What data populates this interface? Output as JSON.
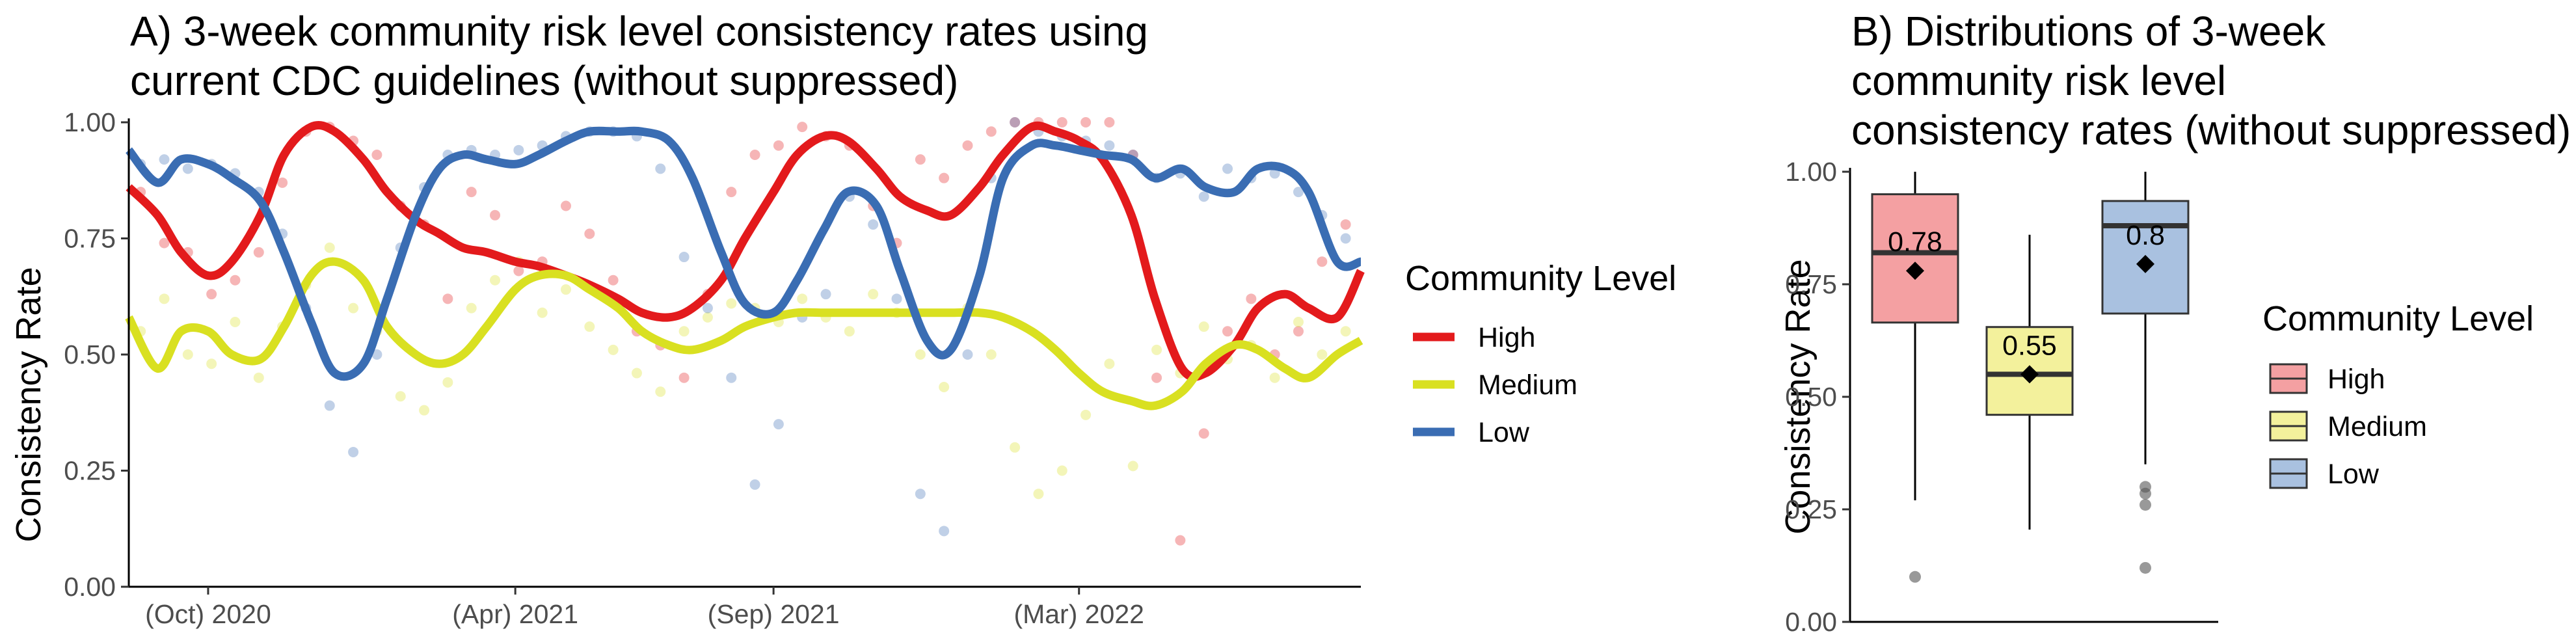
{
  "colors": {
    "high": "#e31a1c",
    "medium": "#d9e021",
    "low": "#3a6db3",
    "high_fill": "#f4a0a2",
    "medium_fill": "#f3f19c",
    "low_fill": "#a9c1e0"
  },
  "chart_data": [
    {
      "type": "line",
      "title": "A) 3-week community risk level consistency rates using current CDC guidelines (without suppressed)",
      "title_lines": [
        "A) 3-week community risk level consistency rates using",
        "current CDC guidelines (without suppressed)"
      ],
      "xlabel": "",
      "ylabel": "Consistency Rate",
      "x_range": [
        "2020-08-15",
        "2022-08-15"
      ],
      "x_ticks": [
        {
          "date": "2020-10-01",
          "label": "(Oct) 2020"
        },
        {
          "date": "2021-04-01",
          "label": "(Apr) 2021"
        },
        {
          "date": "2021-09-01",
          "label": "(Sep) 2021"
        },
        {
          "date": "2022-03-01",
          "label": "(Mar) 2022"
        }
      ],
      "ylim": [
        0,
        1
      ],
      "y_ticks": [
        "0.00",
        "0.25",
        "0.50",
        "0.75",
        "1.00"
      ],
      "legend": {
        "title": "Community Level",
        "position": "right"
      },
      "series": [
        {
          "name": "High",
          "color": "#e31a1c",
          "smooth_x": [
            "2020-08-15",
            "2020-09-01",
            "2020-09-15",
            "2020-10-01",
            "2020-10-15",
            "2020-11-01",
            "2020-11-15",
            "2020-12-01",
            "2020-12-15",
            "2021-01-01",
            "2021-01-15",
            "2021-02-01",
            "2021-02-15",
            "2021-03-01",
            "2021-03-15",
            "2021-04-01",
            "2021-04-15",
            "2021-05-01",
            "2021-05-15",
            "2021-06-01",
            "2021-06-15",
            "2021-07-01",
            "2021-07-15",
            "2021-08-01",
            "2021-08-15",
            "2021-09-01",
            "2021-09-15",
            "2021-10-01",
            "2021-10-15",
            "2021-11-01",
            "2021-11-15",
            "2021-12-01",
            "2021-12-15",
            "2022-01-01",
            "2022-01-15",
            "2022-02-01",
            "2022-02-15",
            "2022-03-01",
            "2022-03-15",
            "2022-04-01",
            "2022-04-15",
            "2022-05-01",
            "2022-05-15",
            "2022-06-01",
            "2022-06-15",
            "2022-07-01",
            "2022-07-15",
            "2022-08-01",
            "2022-08-15"
          ],
          "smooth_y": [
            0.86,
            0.8,
            0.72,
            0.67,
            0.7,
            0.8,
            0.93,
            0.99,
            0.98,
            0.92,
            0.85,
            0.79,
            0.76,
            0.73,
            0.72,
            0.7,
            0.69,
            0.67,
            0.65,
            0.62,
            0.59,
            0.58,
            0.6,
            0.66,
            0.75,
            0.85,
            0.93,
            0.97,
            0.96,
            0.9,
            0.84,
            0.81,
            0.8,
            0.86,
            0.93,
            0.99,
            0.98,
            0.96,
            0.92,
            0.8,
            0.62,
            0.47,
            0.46,
            0.52,
            0.6,
            0.63,
            0.6,
            0.58,
            0.68
          ],
          "points_x": [
            "2020-08-22",
            "2020-09-05",
            "2020-09-19",
            "2020-10-03",
            "2020-10-17",
            "2020-10-31",
            "2020-11-14",
            "2020-11-28",
            "2020-12-12",
            "2020-12-26",
            "2021-01-09",
            "2021-01-23",
            "2021-02-06",
            "2021-02-20",
            "2021-03-06",
            "2021-03-20",
            "2021-04-03",
            "2021-04-17",
            "2021-05-01",
            "2021-05-15",
            "2021-05-29",
            "2021-06-12",
            "2021-06-26",
            "2021-07-10",
            "2021-07-24",
            "2021-08-07",
            "2021-08-21",
            "2021-09-04",
            "2021-09-18",
            "2021-10-02",
            "2021-10-16",
            "2021-10-30",
            "2021-11-13",
            "2021-11-27",
            "2021-12-11",
            "2021-12-25",
            "2022-01-08",
            "2022-01-22",
            "2022-02-05",
            "2022-02-19",
            "2022-03-05",
            "2022-03-19",
            "2022-04-02",
            "2022-04-16",
            "2022-04-30",
            "2022-05-14",
            "2022-05-28",
            "2022-06-11",
            "2022-06-25",
            "2022-07-09",
            "2022-07-23",
            "2022-08-06"
          ],
          "points_y": [
            0.85,
            0.74,
            0.72,
            0.63,
            0.66,
            0.72,
            0.87,
            0.98,
            0.99,
            0.96,
            0.93,
            0.82,
            0.78,
            0.62,
            0.85,
            0.8,
            0.68,
            0.7,
            0.82,
            0.76,
            0.66,
            0.55,
            0.52,
            0.45,
            0.63,
            0.85,
            0.93,
            0.95,
            0.99,
            0.97,
            0.95,
            0.82,
            0.74,
            0.92,
            0.88,
            0.95,
            0.98,
            1.0,
            1.0,
            1.0,
            1.0,
            1.0,
            0.93,
            0.45,
            0.1,
            0.33,
            0.55,
            0.62,
            0.5,
            0.55,
            0.7,
            0.78
          ]
        },
        {
          "name": "Medium",
          "color": "#d9e021",
          "smooth_x": [
            "2020-08-15",
            "2020-09-01",
            "2020-09-15",
            "2020-10-01",
            "2020-10-15",
            "2020-11-01",
            "2020-11-15",
            "2020-12-01",
            "2020-12-15",
            "2021-01-01",
            "2021-01-15",
            "2021-02-01",
            "2021-02-15",
            "2021-03-01",
            "2021-03-15",
            "2021-04-01",
            "2021-04-15",
            "2021-05-01",
            "2021-05-15",
            "2021-06-01",
            "2021-06-15",
            "2021-07-01",
            "2021-07-15",
            "2021-08-01",
            "2021-08-15",
            "2021-09-01",
            "2021-09-15",
            "2021-10-01",
            "2021-10-15",
            "2021-11-01",
            "2021-11-15",
            "2021-12-01",
            "2021-12-15",
            "2022-01-01",
            "2022-01-15",
            "2022-02-01",
            "2022-02-15",
            "2022-03-01",
            "2022-03-15",
            "2022-04-01",
            "2022-04-15",
            "2022-05-01",
            "2022-05-15",
            "2022-06-01",
            "2022-06-15",
            "2022-07-01",
            "2022-07-15",
            "2022-08-01",
            "2022-08-15"
          ],
          "smooth_y": [
            0.58,
            0.47,
            0.55,
            0.55,
            0.5,
            0.49,
            0.56,
            0.67,
            0.7,
            0.66,
            0.56,
            0.5,
            0.48,
            0.5,
            0.56,
            0.64,
            0.67,
            0.67,
            0.64,
            0.6,
            0.55,
            0.52,
            0.51,
            0.53,
            0.56,
            0.58,
            0.59,
            0.59,
            0.59,
            0.59,
            0.59,
            0.59,
            0.59,
            0.59,
            0.58,
            0.55,
            0.51,
            0.46,
            0.42,
            0.4,
            0.39,
            0.42,
            0.48,
            0.52,
            0.51,
            0.47,
            0.45,
            0.5,
            0.53
          ],
          "points_x": [
            "2020-08-22",
            "2020-09-05",
            "2020-09-19",
            "2020-10-03",
            "2020-10-17",
            "2020-10-31",
            "2020-11-14",
            "2020-11-28",
            "2020-12-12",
            "2020-12-26",
            "2021-01-09",
            "2021-01-23",
            "2021-02-06",
            "2021-02-20",
            "2021-03-06",
            "2021-03-20",
            "2021-04-03",
            "2021-04-17",
            "2021-05-01",
            "2021-05-15",
            "2021-05-29",
            "2021-06-12",
            "2021-06-26",
            "2021-07-10",
            "2021-07-24",
            "2021-08-07",
            "2021-08-21",
            "2021-09-04",
            "2021-09-18",
            "2021-10-02",
            "2021-10-16",
            "2021-10-30",
            "2021-11-13",
            "2021-11-27",
            "2021-12-11",
            "2021-12-25",
            "2022-01-08",
            "2022-01-22",
            "2022-02-05",
            "2022-02-19",
            "2022-03-05",
            "2022-03-19",
            "2022-04-02",
            "2022-04-16",
            "2022-04-30",
            "2022-05-14",
            "2022-05-28",
            "2022-06-11",
            "2022-06-25",
            "2022-07-09",
            "2022-07-23",
            "2022-08-06"
          ],
          "points_y": [
            0.55,
            0.62,
            0.5,
            0.48,
            0.57,
            0.45,
            0.56,
            0.65,
            0.73,
            0.6,
            0.55,
            0.41,
            0.38,
            0.44,
            0.6,
            0.66,
            0.7,
            0.59,
            0.64,
            0.56,
            0.51,
            0.46,
            0.42,
            0.55,
            0.58,
            0.61,
            0.6,
            0.57,
            0.62,
            0.58,
            0.55,
            0.63,
            0.59,
            0.5,
            0.43,
            0.6,
            0.5,
            0.3,
            0.2,
            0.25,
            0.37,
            0.48,
            0.26,
            0.51,
            0.46,
            0.56,
            0.49,
            0.52,
            0.45,
            0.57,
            0.5,
            0.55
          ]
        },
        {
          "name": "Low",
          "color": "#3a6db3",
          "smooth_x": [
            "2020-08-15",
            "2020-09-01",
            "2020-09-15",
            "2020-10-01",
            "2020-10-15",
            "2020-11-01",
            "2020-11-15",
            "2020-12-01",
            "2020-12-15",
            "2021-01-01",
            "2021-01-15",
            "2021-02-01",
            "2021-02-15",
            "2021-03-01",
            "2021-03-15",
            "2021-04-01",
            "2021-04-15",
            "2021-05-01",
            "2021-05-15",
            "2021-06-01",
            "2021-06-15",
            "2021-07-01",
            "2021-07-15",
            "2021-08-01",
            "2021-08-15",
            "2021-09-01",
            "2021-09-15",
            "2021-10-01",
            "2021-10-15",
            "2021-11-01",
            "2021-11-15",
            "2021-12-01",
            "2021-12-15",
            "2022-01-01",
            "2022-01-15",
            "2022-02-01",
            "2022-02-15",
            "2022-03-01",
            "2022-03-15",
            "2022-04-01",
            "2022-04-15",
            "2022-05-01",
            "2022-05-15",
            "2022-06-01",
            "2022-06-15",
            "2022-07-01",
            "2022-07-15",
            "2022-08-01",
            "2022-08-15"
          ],
          "smooth_y": [
            0.94,
            0.87,
            0.92,
            0.91,
            0.88,
            0.83,
            0.72,
            0.57,
            0.46,
            0.48,
            0.62,
            0.8,
            0.9,
            0.93,
            0.92,
            0.91,
            0.93,
            0.96,
            0.98,
            0.98,
            0.98,
            0.96,
            0.88,
            0.72,
            0.61,
            0.59,
            0.66,
            0.77,
            0.85,
            0.82,
            0.68,
            0.53,
            0.51,
            0.67,
            0.88,
            0.95,
            0.95,
            0.94,
            0.93,
            0.92,
            0.88,
            0.9,
            0.86,
            0.85,
            0.9,
            0.9,
            0.85,
            0.7,
            0.7
          ],
          "points_x": [
            "2020-08-22",
            "2020-09-05",
            "2020-09-19",
            "2020-10-03",
            "2020-10-17",
            "2020-10-31",
            "2020-11-14",
            "2020-11-28",
            "2020-12-12",
            "2020-12-26",
            "2021-01-09",
            "2021-01-23",
            "2021-02-06",
            "2021-02-20",
            "2021-03-06",
            "2021-03-20",
            "2021-04-03",
            "2021-04-17",
            "2021-05-01",
            "2021-05-15",
            "2021-05-29",
            "2021-06-12",
            "2021-06-26",
            "2021-07-10",
            "2021-07-24",
            "2021-08-07",
            "2021-08-21",
            "2021-09-04",
            "2021-09-18",
            "2021-10-02",
            "2021-10-16",
            "2021-10-30",
            "2021-11-13",
            "2021-11-27",
            "2021-12-11",
            "2021-12-25",
            "2022-01-08",
            "2022-01-22",
            "2022-02-05",
            "2022-02-19",
            "2022-03-05",
            "2022-03-19",
            "2022-04-02",
            "2022-04-16",
            "2022-04-30",
            "2022-05-14",
            "2022-05-28",
            "2022-06-11",
            "2022-06-25",
            "2022-07-09",
            "2022-07-23",
            "2022-08-06"
          ],
          "points_y": [
            0.91,
            0.92,
            0.9,
            0.91,
            0.89,
            0.85,
            0.76,
            0.6,
            0.39,
            0.29,
            0.5,
            0.73,
            0.86,
            0.93,
            0.94,
            0.93,
            0.94,
            0.95,
            0.97,
            0.98,
            0.98,
            0.97,
            0.9,
            0.71,
            0.6,
            0.45,
            0.22,
            0.35,
            0.58,
            0.63,
            0.84,
            0.78,
            0.62,
            0.2,
            0.12,
            0.5,
            0.88,
            1.0,
            0.98,
            0.97,
            0.96,
            0.95,
            0.93,
            0.88,
            0.89,
            0.84,
            0.9,
            0.88,
            0.89,
            0.85,
            0.8,
            0.75
          ]
        }
      ]
    },
    {
      "type": "box",
      "title": "B) Distributions of 3-week community risk level consistency rates (without suppressed)",
      "title_lines": [
        "B) Distributions of 3-week",
        "community risk level",
        "consistency rates (without suppressed)"
      ],
      "xlabel": "",
      "ylabel": "Consistency Rate",
      "ylim": [
        0,
        1
      ],
      "y_ticks": [
        "0.00",
        "0.25",
        "0.50",
        "0.75",
        "1.00"
      ],
      "legend": {
        "title": "Community Level",
        "position": "right"
      },
      "boxes": [
        {
          "name": "High",
          "fill": "#f4a0a2",
          "whisker_low": 0.27,
          "q1": 0.665,
          "median": 0.82,
          "q3": 0.95,
          "whisker_high": 1.0,
          "mean": 0.78,
          "mean_label": "0.78",
          "outliers": [
            0.1
          ]
        },
        {
          "name": "Medium",
          "fill": "#f3f19c",
          "whisker_low": 0.205,
          "q1": 0.46,
          "median": 0.55,
          "q3": 0.655,
          "whisker_high": 0.86,
          "mean": 0.55,
          "mean_label": "0.55",
          "outliers": []
        },
        {
          "name": "Low",
          "fill": "#a9c1e0",
          "whisker_low": 0.35,
          "q1": 0.685,
          "median": 0.88,
          "q3": 0.935,
          "whisker_high": 1.0,
          "mean": 0.795,
          "mean_label": "0.8",
          "outliers": [
            0.12,
            0.26,
            0.285,
            0.3
          ]
        }
      ]
    }
  ]
}
